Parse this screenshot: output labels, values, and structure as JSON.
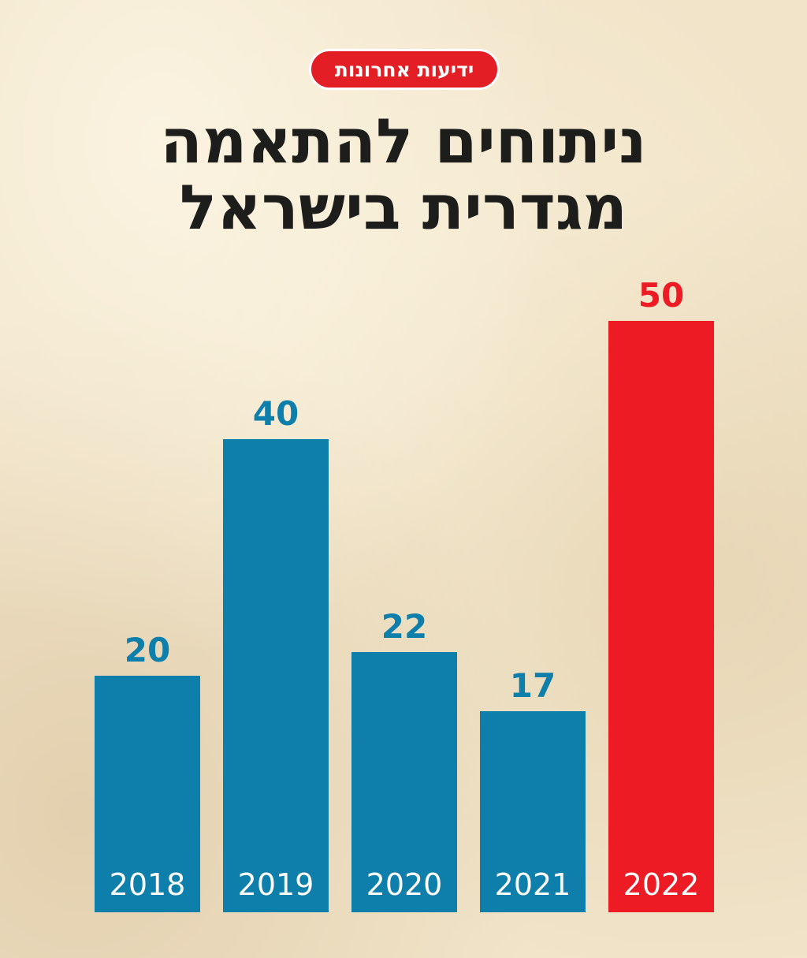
{
  "source": {
    "label": "ידיעות אחרונות"
  },
  "header": {
    "title_line1": "ניתוחים להתאמה",
    "title_line2": "מגדרית בישראל"
  },
  "colors": {
    "bar": "#0e7fab",
    "highlight": "#ed1c24",
    "value_label": "#0e7fab",
    "value_label_highlight": "#ed1c24",
    "category_label": "#ffffff",
    "background": "#f1e4c9",
    "title": "#1d1d1b"
  },
  "chart_data": {
    "type": "bar",
    "title": "ניתוחים להתאמה מגדרית בישראל",
    "categories": [
      "2018",
      "2019",
      "2020",
      "2021",
      "2022"
    ],
    "values": [
      20,
      40,
      22,
      17,
      50
    ],
    "highlight_category": "2022",
    "xlabel": "",
    "ylabel": "",
    "ylim": [
      0,
      50
    ],
    "grid": false,
    "legend": "none",
    "data_labels": [
      "20",
      "40",
      "22",
      "17",
      "50"
    ]
  }
}
